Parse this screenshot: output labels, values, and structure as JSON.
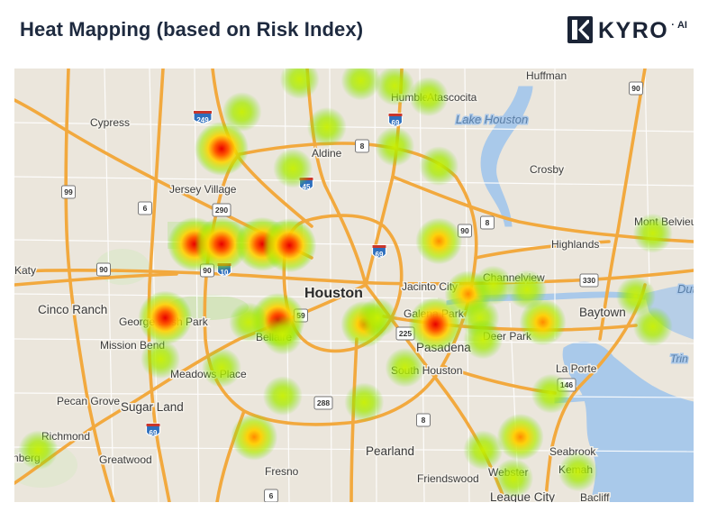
{
  "header": {
    "title": "Heat Mapping (based on Risk Index)",
    "brand": "KYRO",
    "brand_suffix": "AI"
  },
  "map": {
    "city_major": "Houston",
    "places": [
      {
        "name": "Huffman"
      },
      {
        "name": "Humble"
      },
      {
        "name": "Atascocita"
      },
      {
        "name": "Cypress"
      },
      {
        "name": "Aldine"
      },
      {
        "name": "Crosby"
      },
      {
        "name": "Jersey Village"
      },
      {
        "name": "Mont Belvieu"
      },
      {
        "name": "Highlands"
      },
      {
        "name": "Katy"
      },
      {
        "name": "Jacinto City"
      },
      {
        "name": "Channelview"
      },
      {
        "name": "Cinco Ranch"
      },
      {
        "name": "George Bush Park"
      },
      {
        "name": "Galena Park"
      },
      {
        "name": "Baytown"
      },
      {
        "name": "Mission Bend"
      },
      {
        "name": "Bellaire"
      },
      {
        "name": "Pasadena"
      },
      {
        "name": "Deer Park"
      },
      {
        "name": "Meadows Place"
      },
      {
        "name": "South Houston"
      },
      {
        "name": "La Porte"
      },
      {
        "name": "Pecan Grove"
      },
      {
        "name": "Sugar Land"
      },
      {
        "name": "Richmond"
      },
      {
        "name": "Rosenberg"
      },
      {
        "name": "Greatwood"
      },
      {
        "name": "Pearland"
      },
      {
        "name": "Seabrook"
      },
      {
        "name": "Kemah"
      },
      {
        "name": "Fresno"
      },
      {
        "name": "Friendswood"
      },
      {
        "name": "Webster"
      },
      {
        "name": "League City"
      },
      {
        "name": "Bacliff"
      }
    ],
    "water_labels": [
      {
        "name": "Lake Houston"
      },
      {
        "name": "Dut"
      },
      {
        "name": "Trin"
      }
    ],
    "road_shields": [
      {
        "route": "249"
      },
      {
        "route": "69"
      },
      {
        "route": "8"
      },
      {
        "route": "90"
      },
      {
        "route": "99"
      },
      {
        "route": "45"
      },
      {
        "route": "6"
      },
      {
        "route": "290"
      },
      {
        "route": "610"
      },
      {
        "route": "10"
      },
      {
        "route": "330"
      },
      {
        "route": "59"
      },
      {
        "route": "225"
      },
      {
        "route": "146"
      },
      {
        "route": "288"
      },
      {
        "route": "35"
      }
    ],
    "heat_points": [
      {
        "lon_frac": 0.305,
        "lat_frac": 0.185,
        "risk": "high"
      },
      {
        "lon_frac": 0.265,
        "lat_frac": 0.405,
        "risk": "high"
      },
      {
        "lon_frac": 0.305,
        "lat_frac": 0.405,
        "risk": "high"
      },
      {
        "lon_frac": 0.365,
        "lat_frac": 0.405,
        "risk": "high"
      },
      {
        "lon_frac": 0.405,
        "lat_frac": 0.408,
        "risk": "high"
      },
      {
        "lon_frac": 0.222,
        "lat_frac": 0.575,
        "risk": "high"
      },
      {
        "lon_frac": 0.388,
        "lat_frac": 0.58,
        "risk": "high"
      },
      {
        "lon_frac": 0.62,
        "lat_frac": 0.59,
        "risk": "high"
      },
      {
        "lon_frac": 0.625,
        "lat_frac": 0.398,
        "risk": "medium"
      },
      {
        "lon_frac": 0.668,
        "lat_frac": 0.52,
        "risk": "medium"
      },
      {
        "lon_frac": 0.778,
        "lat_frac": 0.585,
        "risk": "medium"
      },
      {
        "lon_frac": 0.353,
        "lat_frac": 0.85,
        "risk": "medium"
      },
      {
        "lon_frac": 0.745,
        "lat_frac": 0.85,
        "risk": "medium"
      },
      {
        "lon_frac": 0.515,
        "lat_frac": 0.59,
        "risk": "medium"
      },
      {
        "lon_frac": 0.42,
        "lat_frac": 0.025,
        "risk": "low"
      },
      {
        "lon_frac": 0.51,
        "lat_frac": 0.028,
        "risk": "low"
      },
      {
        "lon_frac": 0.56,
        "lat_frac": 0.04,
        "risk": "low"
      },
      {
        "lon_frac": 0.61,
        "lat_frac": 0.065,
        "risk": "low"
      },
      {
        "lon_frac": 0.335,
        "lat_frac": 0.1,
        "risk": "low"
      },
      {
        "lon_frac": 0.46,
        "lat_frac": 0.135,
        "risk": "low"
      },
      {
        "lon_frac": 0.56,
        "lat_frac": 0.18,
        "risk": "low"
      },
      {
        "lon_frac": 0.41,
        "lat_frac": 0.23,
        "risk": "low"
      },
      {
        "lon_frac": 0.625,
        "lat_frac": 0.225,
        "risk": "low"
      },
      {
        "lon_frac": 0.94,
        "lat_frac": 0.38,
        "risk": "low"
      },
      {
        "lon_frac": 0.705,
        "lat_frac": 0.5,
        "risk": "low"
      },
      {
        "lon_frac": 0.755,
        "lat_frac": 0.51,
        "risk": "low"
      },
      {
        "lon_frac": 0.915,
        "lat_frac": 0.525,
        "risk": "low"
      },
      {
        "lon_frac": 0.94,
        "lat_frac": 0.595,
        "risk": "low"
      },
      {
        "lon_frac": 0.685,
        "lat_frac": 0.575,
        "risk": "low"
      },
      {
        "lon_frac": 0.69,
        "lat_frac": 0.625,
        "risk": "low"
      },
      {
        "lon_frac": 0.345,
        "lat_frac": 0.585,
        "risk": "low"
      },
      {
        "lon_frac": 0.395,
        "lat_frac": 0.615,
        "risk": "low"
      },
      {
        "lon_frac": 0.535,
        "lat_frac": 0.575,
        "risk": "low"
      },
      {
        "lon_frac": 0.215,
        "lat_frac": 0.67,
        "risk": "low"
      },
      {
        "lon_frac": 0.305,
        "lat_frac": 0.69,
        "risk": "low"
      },
      {
        "lon_frac": 0.575,
        "lat_frac": 0.69,
        "risk": "low"
      },
      {
        "lon_frac": 0.395,
        "lat_frac": 0.755,
        "risk": "low"
      },
      {
        "lon_frac": 0.515,
        "lat_frac": 0.77,
        "risk": "low"
      },
      {
        "lon_frac": 0.79,
        "lat_frac": 0.75,
        "risk": "low"
      },
      {
        "lon_frac": 0.69,
        "lat_frac": 0.88,
        "risk": "low"
      },
      {
        "lon_frac": 0.735,
        "lat_frac": 0.945,
        "risk": "low"
      },
      {
        "lon_frac": 0.83,
        "lat_frac": 0.93,
        "risk": "low"
      },
      {
        "lon_frac": 0.035,
        "lat_frac": 0.88,
        "risk": "low"
      }
    ]
  }
}
